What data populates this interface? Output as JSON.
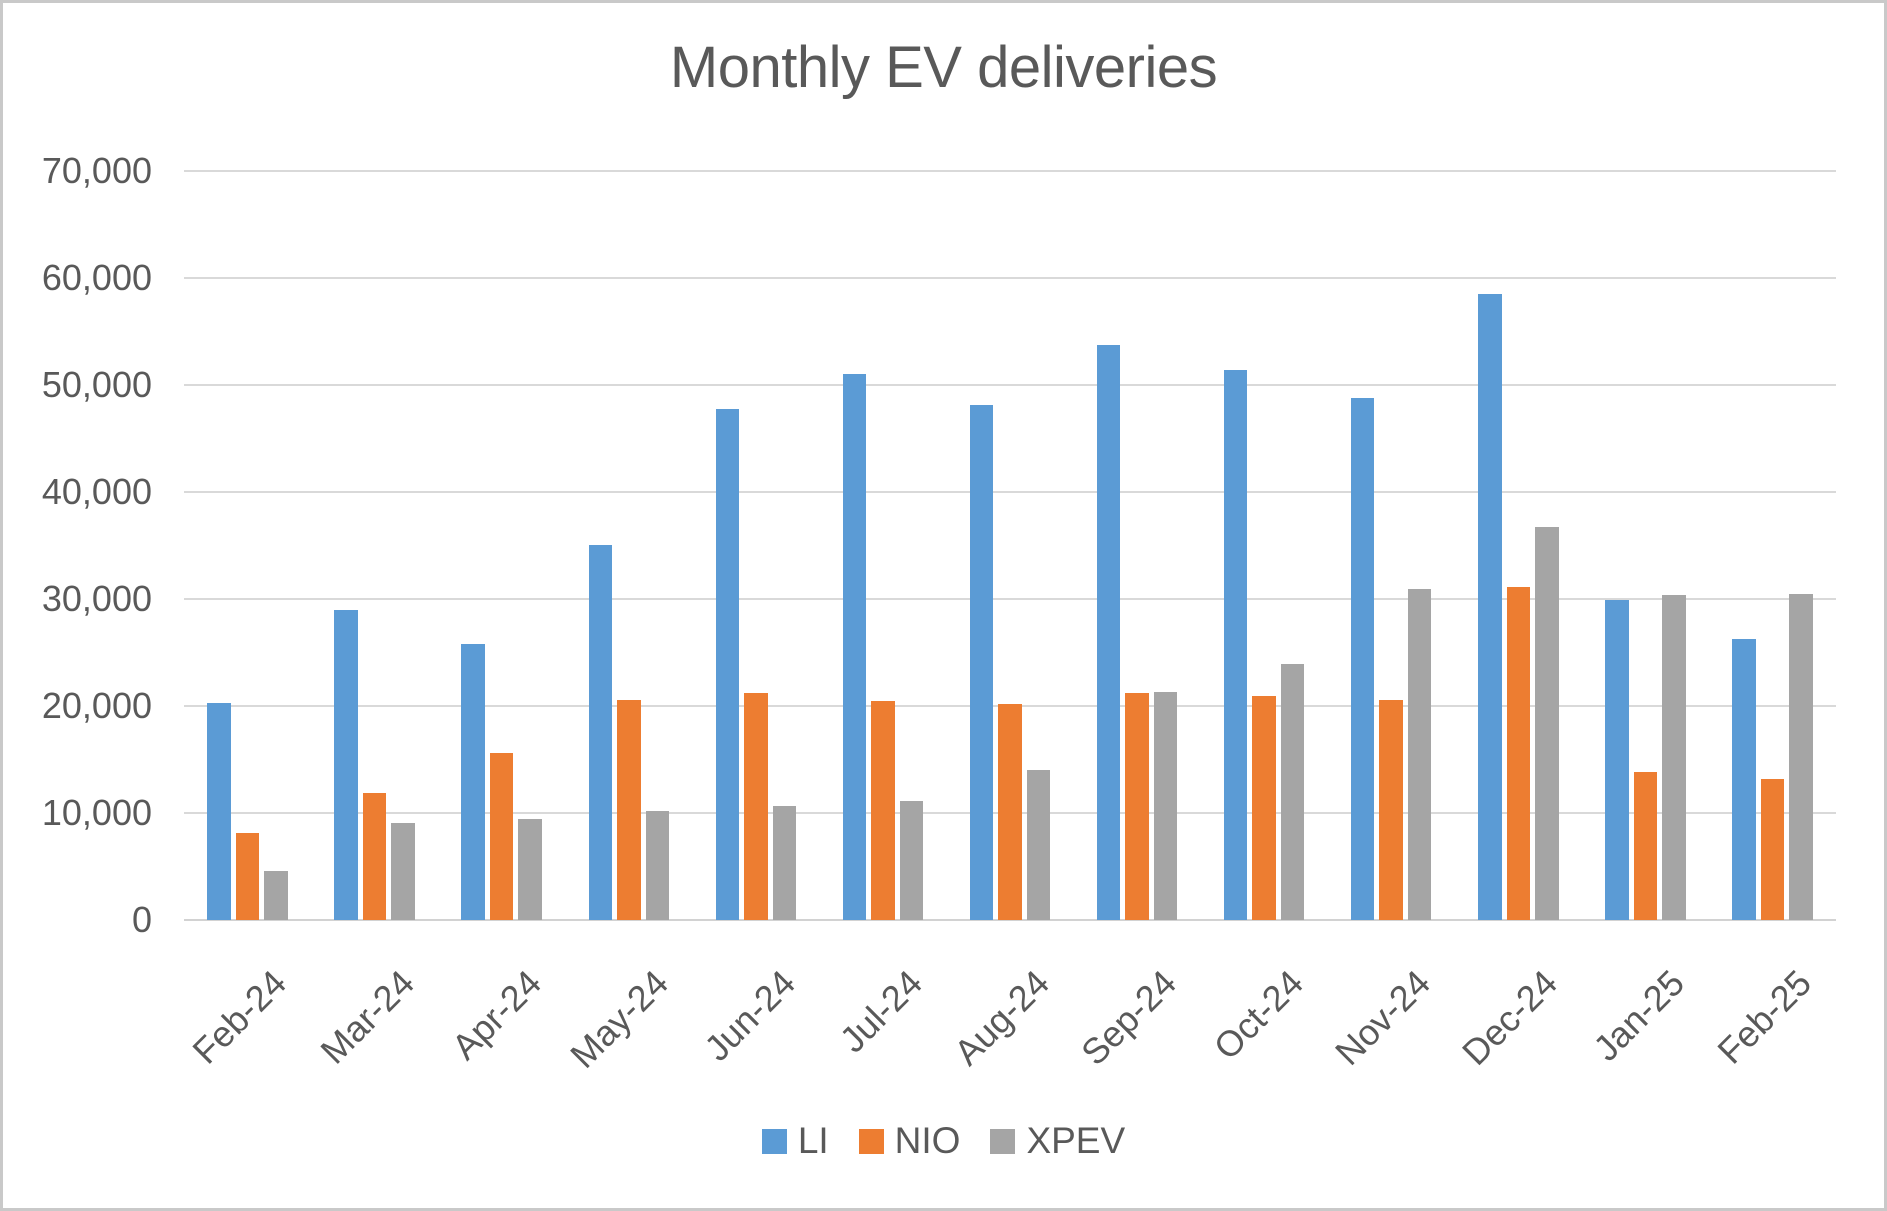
{
  "chart_data": {
    "type": "bar",
    "title": "Monthly EV deliveries",
    "xlabel": "",
    "ylabel": "",
    "categories": [
      "Feb-24",
      "Mar-24",
      "Apr-24",
      "May-24",
      "Jun-24",
      "Jul-24",
      "Aug-24",
      "Sep-24",
      "Oct-24",
      "Nov-24",
      "Dec-24",
      "Jan-25",
      "Feb-25"
    ],
    "series": [
      {
        "name": "LI",
        "color": "#5B9BD5",
        "values": [
          20251,
          28984,
          25787,
          35020,
          47774,
          51000,
          48122,
          53709,
          51443,
          48740,
          58513,
          29927,
          26263
        ]
      },
      {
        "name": "NIO",
        "color": "#ED7D31",
        "values": [
          8132,
          11866,
          15620,
          20544,
          21209,
          20498,
          20176,
          21181,
          20976,
          20575,
          31138,
          13863,
          13192
        ]
      },
      {
        "name": "XPEV",
        "color": "#A5A5A5",
        "values": [
          4545,
          9026,
          9393,
          10146,
          10668,
          11145,
          14036,
          21352,
          23917,
          30895,
          36695,
          30350,
          30453
        ]
      }
    ],
    "ylim": [
      0,
      70000
    ],
    "ytick_step": 10000,
    "ytick_labels": [
      "0",
      "10,000",
      "20,000",
      "30,000",
      "40,000",
      "50,000",
      "60,000",
      "70,000"
    ],
    "grid": "horizontal",
    "legend_position": "bottom"
  },
  "colors": {
    "text": "#595959",
    "gridline": "#D9D9D9",
    "axis_line": "#D2D2D2",
    "background": "#FFFFFF",
    "border": "#C9C9C9"
  }
}
